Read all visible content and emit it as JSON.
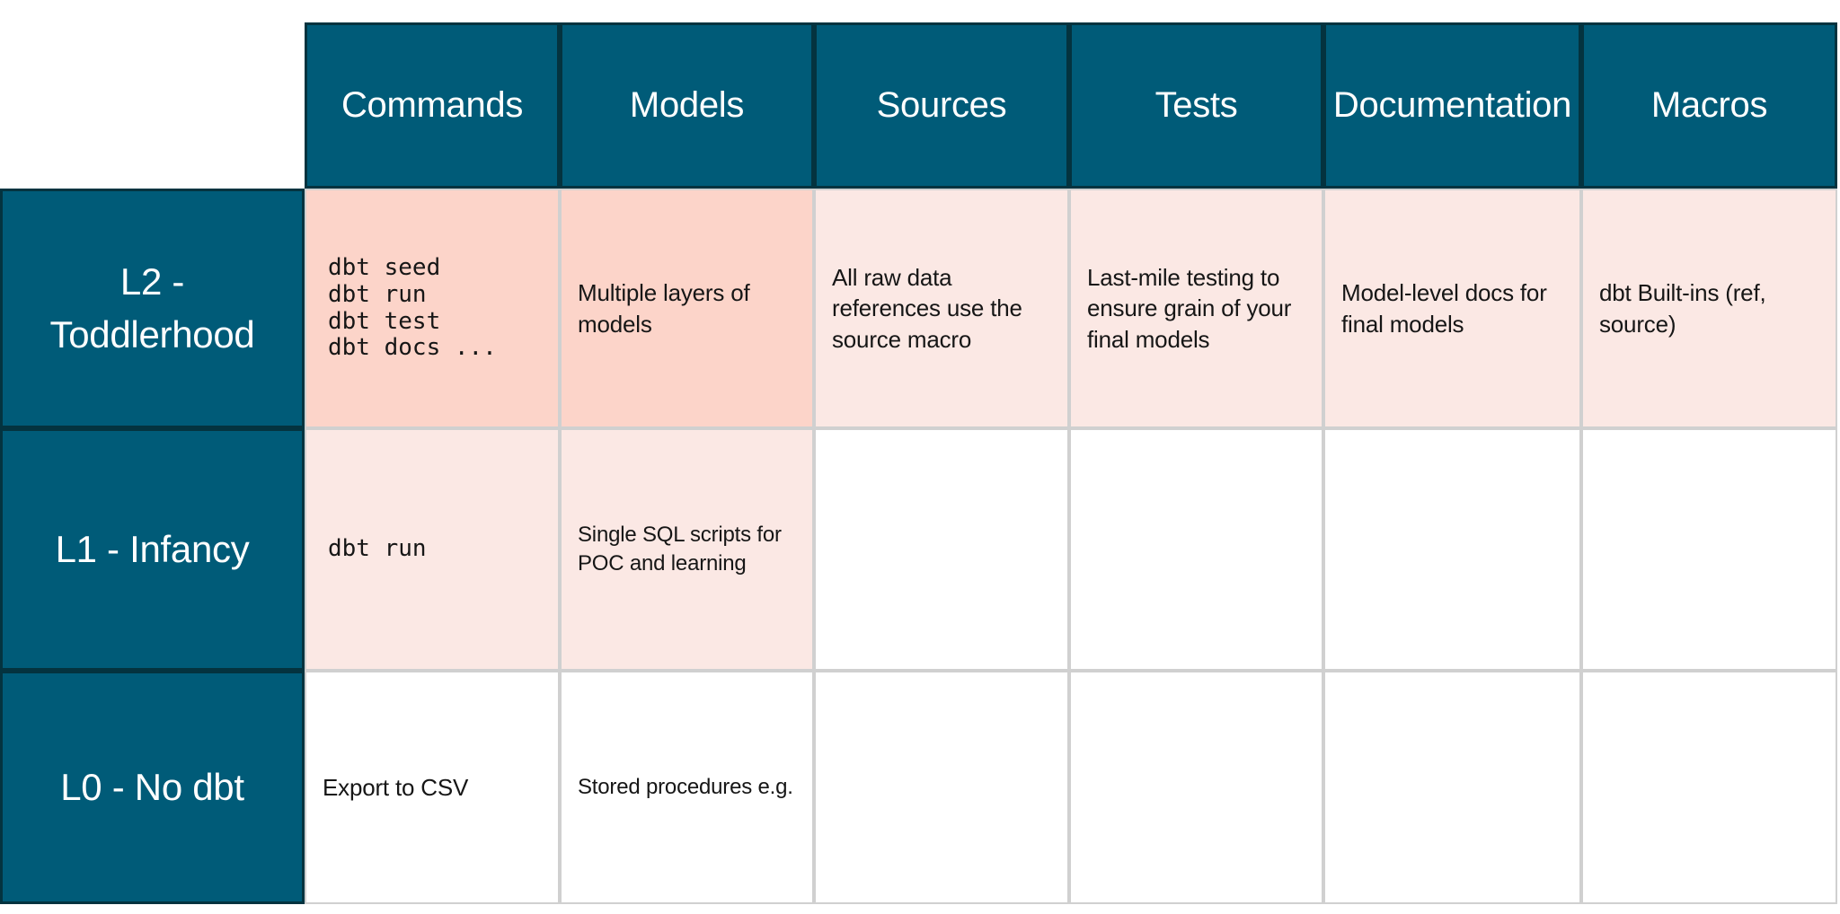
{
  "palette": {
    "header_bg": "#005B78",
    "header_border": "#04333F",
    "header_text": "#FFFFFF",
    "cell_highlight_strong": "#FCD4C9",
    "cell_highlight_light": "#FBE8E4",
    "cell_empty": "#FFFFFF",
    "grid_line": "#D0D0D0",
    "body_text": "#161616",
    "page_bg": "#FFFFFF"
  },
  "table": {
    "column_headers": [
      "Commands",
      "Models",
      "Sources",
      "Tests",
      "Documentation",
      "Macros"
    ],
    "rows": [
      {
        "label": "L2 - Toddlerhood",
        "cells": [
          {
            "text": "dbt seed\ndbt run\ndbt test\ndbt docs ...",
            "kind": "code",
            "bg": "salmon"
          },
          {
            "text": "Multiple layers of models",
            "kind": "text",
            "bg": "salmon"
          },
          {
            "text": "All raw data references use the source macro",
            "kind": "text",
            "bg": "pink"
          },
          {
            "text": "Last-mile testing to ensure grain of your final models",
            "kind": "text",
            "bg": "pink"
          },
          {
            "text": "Model-level docs for final models",
            "kind": "text",
            "bg": "pink"
          },
          {
            "text": "dbt Built-ins (ref, source)",
            "kind": "text",
            "bg": "pink"
          }
        ]
      },
      {
        "label": "L1 - Infancy",
        "cells": [
          {
            "text": "dbt run",
            "kind": "code",
            "bg": "pink"
          },
          {
            "text": "Single SQL scripts for POC and learning",
            "kind": "text",
            "bg": "pink"
          },
          {
            "text": "",
            "kind": "text",
            "bg": "white"
          },
          {
            "text": "",
            "kind": "text",
            "bg": "white"
          },
          {
            "text": "",
            "kind": "text",
            "bg": "white"
          },
          {
            "text": "",
            "kind": "text",
            "bg": "white"
          }
        ]
      },
      {
        "label": "L0 - No dbt",
        "cells": [
          {
            "text": "Export to CSV",
            "kind": "text",
            "bg": "white"
          },
          {
            "text": "Stored procedures e.g.",
            "kind": "text",
            "bg": "white"
          },
          {
            "text": "",
            "kind": "text",
            "bg": "white"
          },
          {
            "text": "",
            "kind": "text",
            "bg": "white"
          },
          {
            "text": "",
            "kind": "text",
            "bg": "white"
          },
          {
            "text": "",
            "kind": "text",
            "bg": "white"
          }
        ]
      }
    ]
  }
}
